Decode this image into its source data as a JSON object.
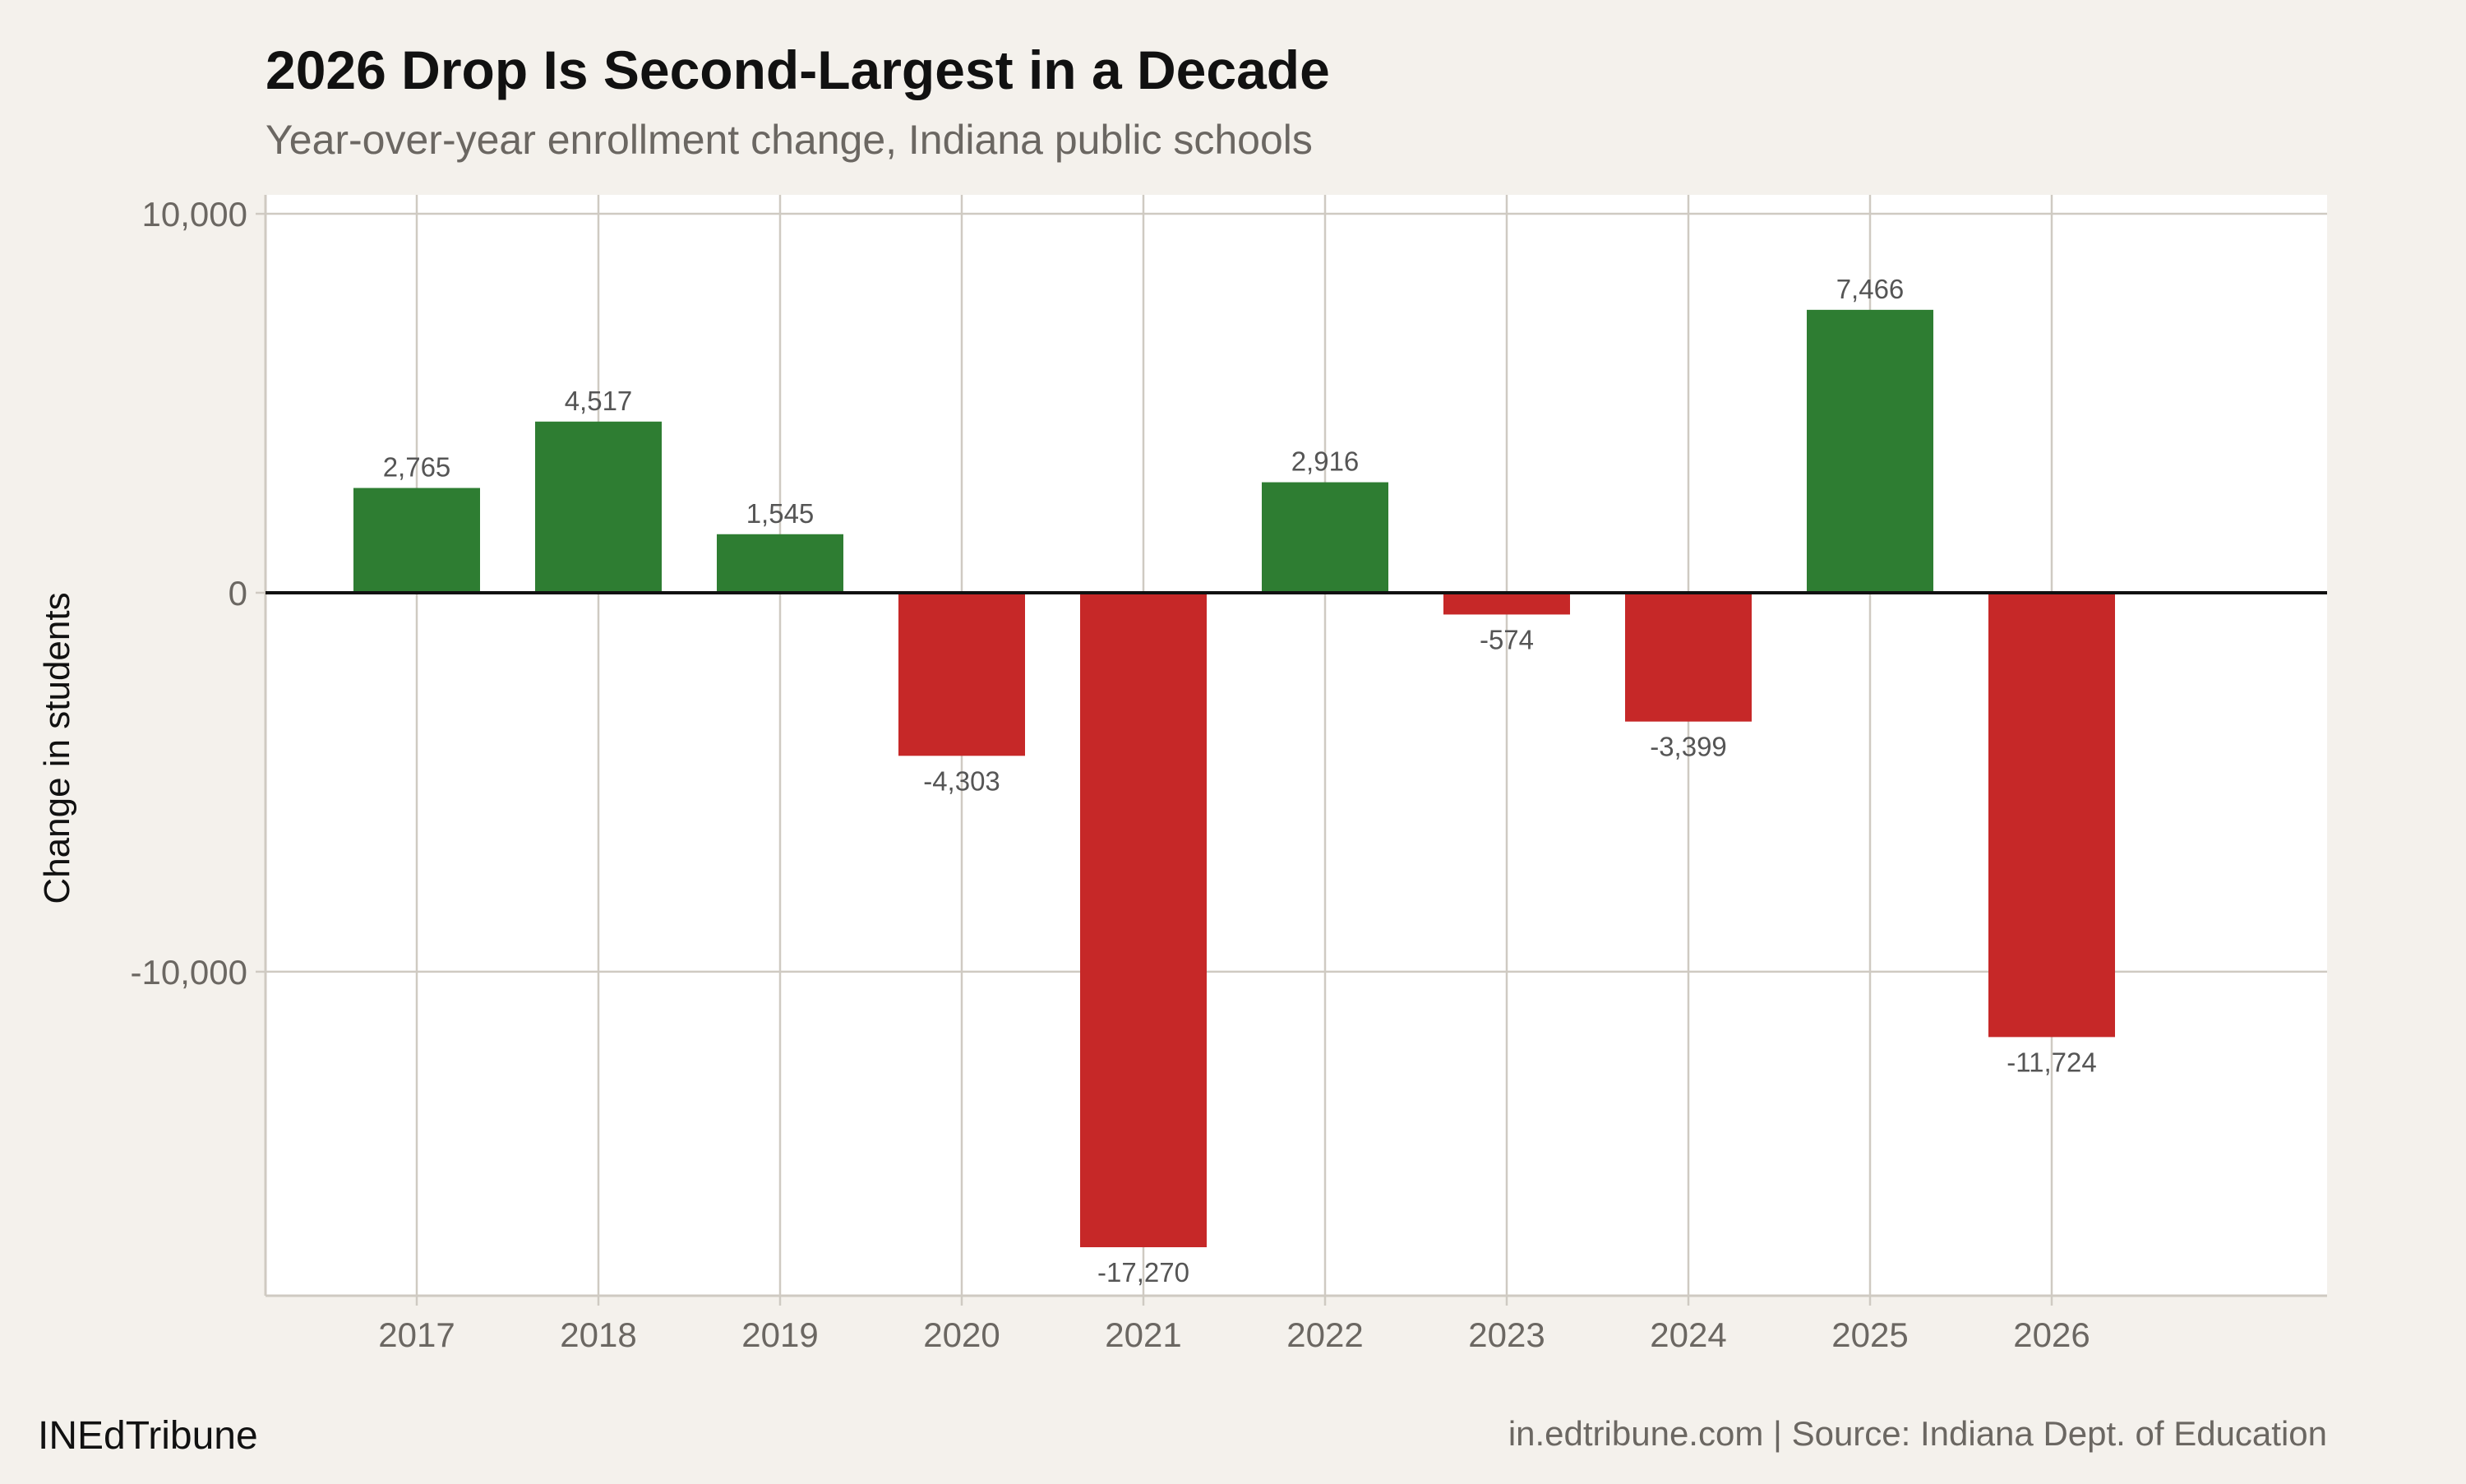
{
  "chart_data": {
    "type": "bar",
    "title": "2026 Drop Is Second-Largest in a Decade",
    "subtitle": "Year-over-year enrollment change, Indiana public schools",
    "xlabel": "",
    "ylabel": "Change in students",
    "categories": [
      "2017",
      "2018",
      "2019",
      "2020",
      "2021",
      "2022",
      "2023",
      "2024",
      "2025",
      "2026"
    ],
    "values": [
      2765,
      4517,
      1545,
      -4303,
      -17270,
      2916,
      -574,
      -3399,
      7466,
      -11724
    ],
    "data_labels": [
      "2,765",
      "4,517",
      "1,545",
      "-4,303",
      "-17,270",
      "2,916",
      "-574",
      "-3,399",
      "7,466",
      "-11,724"
    ],
    "ylim": [
      -18550,
      10500
    ],
    "yticks": [
      10000,
      0,
      -10000
    ],
    "ytick_labels": [
      "10,000",
      "0",
      "-10,000"
    ],
    "grid": true,
    "colors": {
      "positive": "#2e7d32",
      "negative": "#c62828",
      "background": "#f4f1ec",
      "panel": "#ffffff",
      "grid": "#cfcac2"
    }
  },
  "footer": {
    "brand": "INEdTribune",
    "source": "in.edtribune.com | Source: Indiana Dept. of Education"
  }
}
